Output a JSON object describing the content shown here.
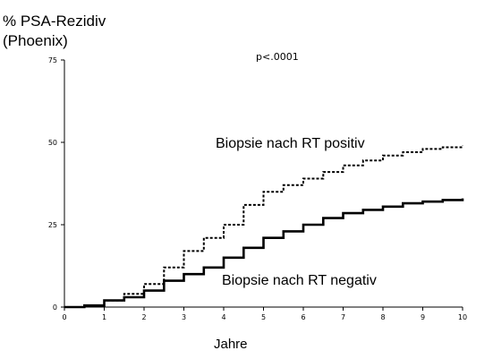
{
  "chart_data": {
    "type": "line",
    "ylabel": [
      "% PSA-Rezidiv",
      "(Phoenix)"
    ],
    "xlabel": "Jahre",
    "annotation": "p<.0001",
    "xlim": [
      0,
      10
    ],
    "ylim": [
      0,
      75
    ],
    "x_ticks": [
      "0",
      "1",
      "2",
      "3",
      "4",
      "5",
      "6",
      "7",
      "8",
      "9",
      "10"
    ],
    "y_ticks": [
      "0",
      "25",
      "50",
      "75"
    ],
    "series": [
      {
        "name": "Biopsie nach RT positiv",
        "style": "dashed",
        "x": [
          0,
          0.5,
          1,
          1.5,
          2,
          2.5,
          3,
          3.5,
          4,
          4.5,
          5,
          5.5,
          6,
          6.5,
          7,
          7.5,
          8,
          8.5,
          9,
          9.5,
          10
        ],
        "y": [
          0,
          0.5,
          2,
          4,
          7,
          12,
          17,
          21,
          25,
          31,
          35,
          37,
          39,
          41,
          43,
          44.5,
          46,
          47,
          48,
          48.5,
          49
        ]
      },
      {
        "name": "Biopsie nach RT negativ",
        "style": "solid",
        "x": [
          0,
          0.5,
          1,
          1.5,
          2,
          2.5,
          3,
          3.5,
          4,
          4.5,
          5,
          5.5,
          6,
          6.5,
          7,
          7.5,
          8,
          8.5,
          9,
          9.5,
          10
        ],
        "y": [
          0,
          0.5,
          2,
          3,
          5,
          8,
          10,
          12,
          15,
          18,
          21,
          23,
          25,
          27,
          28.5,
          29.5,
          30.5,
          31.5,
          32,
          32.5,
          33
        ]
      }
    ]
  }
}
